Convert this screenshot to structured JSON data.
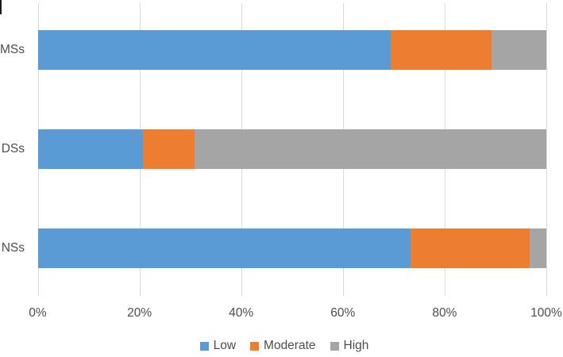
{
  "chart_data": {
    "type": "bar",
    "orientation": "horizontal",
    "stacked": true,
    "stacked_to_100_percent": true,
    "title": "",
    "xlabel": "",
    "ylabel": "",
    "categories": [
      "MSs",
      "DSs",
      "NSs"
    ],
    "series": [
      {
        "name": "Low",
        "color": "#5B9BD5",
        "values": [
          69.4,
          20.7,
          73.3
        ]
      },
      {
        "name": "Moderate",
        "color": "#ED7D31",
        "values": [
          19.8,
          10.1,
          23.4
        ]
      },
      {
        "name": "High",
        "color": "#A5A5A5",
        "values": [
          10.8,
          69.2,
          3.3
        ]
      }
    ],
    "x_axis": {
      "min": 0,
      "max": 100,
      "unit": "%",
      "ticks": [
        "0%",
        "20%",
        "40%",
        "60%",
        "80%",
        "100%"
      ]
    },
    "grid": true,
    "legend": {
      "position": "bottom",
      "entries": [
        "Low",
        "Moderate",
        "High"
      ]
    }
  },
  "colors": {
    "background": "#FFFFFF",
    "gridline": "#D9D9D9",
    "text": "#4D4D4D",
    "low": "#5B9BD5",
    "moderate": "#ED7D31",
    "high": "#A5A5A5"
  }
}
